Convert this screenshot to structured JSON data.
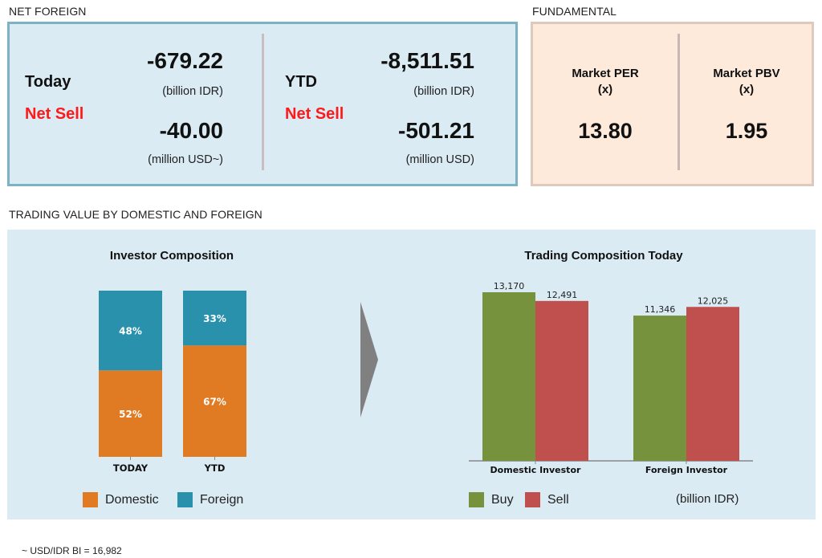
{
  "net_foreign": {
    "section_title": "NET FOREIGN",
    "today": {
      "label": "Today",
      "status": "Net Sell",
      "idr_value": "-679.22",
      "idr_unit": "(billion IDR)",
      "usd_value": "-40.00",
      "usd_unit": "(million USD~)"
    },
    "ytd": {
      "label": "YTD",
      "status": "Net Sell",
      "idr_value": "-8,511.51",
      "idr_unit": "(billion IDR)",
      "usd_value": "-501.21",
      "usd_unit": "(million USD)"
    }
  },
  "fundamental": {
    "section_title": "FUNDAMENTAL",
    "per": {
      "title_line1": "Market PER",
      "title_line2": "(x)",
      "value": "13.80"
    },
    "pbv": {
      "title_line1": "Market PBV",
      "title_line2": "(x)",
      "value": "1.95"
    }
  },
  "trading": {
    "section_title": "TRADING VALUE BY DOMESTIC AND FOREIGN",
    "unit_note": "(billion IDR)"
  },
  "footnote": "~ USD/IDR BI = 16,982",
  "colors": {
    "domestic": "#e07b24",
    "foreign": "#2a91ad",
    "buy": "#76923c",
    "sell": "#c0504d",
    "net_sell": "#ff1a1a",
    "arrow": "#808080"
  },
  "chart_data": [
    {
      "type": "bar",
      "stacked": true,
      "percent": true,
      "title": "Investor Composition",
      "categories": [
        "TODAY",
        "YTD"
      ],
      "series": [
        {
          "name": "Domestic",
          "values": [
            52,
            67
          ],
          "labels": [
            "52%",
            "67%"
          ]
        },
        {
          "name": "Foreign",
          "values": [
            48,
            33
          ],
          "labels": [
            "48%",
            "33%"
          ]
        }
      ],
      "xlabel": "",
      "ylabel": "",
      "ylim": [
        0,
        100
      ],
      "grid": false,
      "legend": "bottom"
    },
    {
      "type": "bar",
      "stacked": false,
      "title": "Trading Composition Today",
      "categories": [
        "Domestic Investor",
        "Foreign Investor"
      ],
      "series": [
        {
          "name": "Buy",
          "values": [
            13170,
            11346
          ],
          "labels": [
            "13,170",
            "11,346"
          ]
        },
        {
          "name": "Sell",
          "values": [
            12491,
            12025
          ],
          "labels": [
            "12,491",
            "12,025"
          ]
        }
      ],
      "xlabel": "",
      "ylabel": "",
      "unit": "billion IDR",
      "ylim": [
        0,
        13500
      ],
      "grid": false,
      "legend": "bottom"
    }
  ]
}
